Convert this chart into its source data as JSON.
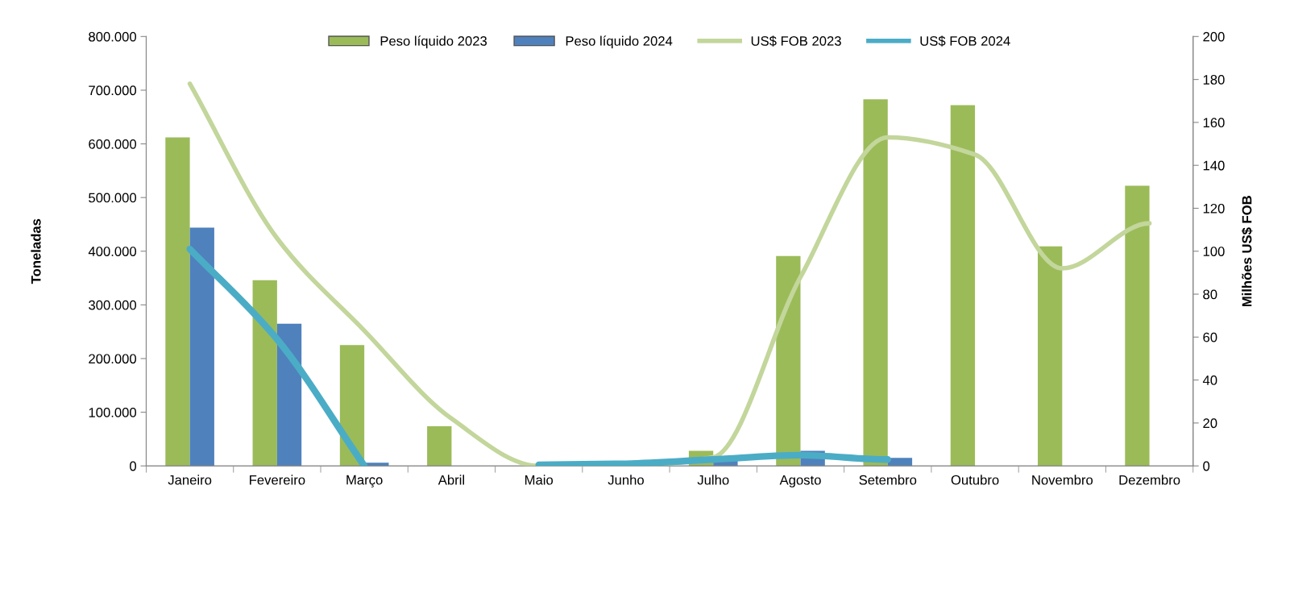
{
  "chart_data": {
    "type": "bar",
    "ylabel": "Toneladas",
    "y2label": "Milhões US$ FOB",
    "categories": [
      "Janeiro",
      "Fevereiro",
      "Março",
      "Abril",
      "Maio",
      "Junho",
      "Julho",
      "Agosto",
      "Setembro",
      "Outubro",
      "Novembro",
      "Dezembro"
    ],
    "series": [
      {
        "name": "Peso líquido 2023",
        "type": "bar",
        "color": "#9bbb59",
        "values": [
          612000,
          346000,
          225000,
          74000,
          0,
          0,
          28000,
          391000,
          683000,
          672000,
          409000,
          522000
        ]
      },
      {
        "name": "Peso líquido 2024",
        "type": "bar",
        "color": "#4f81bd",
        "values": [
          444000,
          265000,
          6000,
          null,
          0,
          0,
          13000,
          28000,
          15000,
          null,
          null,
          null
        ]
      },
      {
        "name": "US$ FOB 2023",
        "type": "line",
        "axis": "y2",
        "color": "#c3d69b",
        "values": [
          178,
          106,
          63,
          22,
          0,
          0,
          4,
          88,
          153,
          145,
          92,
          113
        ]
      },
      {
        "name": "US$ FOB 2024",
        "type": "line",
        "axis": "y2",
        "color": "#4bacc6",
        "values": [
          101,
          59,
          0,
          null,
          0.5,
          1,
          3,
          5,
          3,
          null,
          null,
          null
        ]
      }
    ],
    "ylim": [
      0,
      800000
    ],
    "yticks": [
      0,
      {
        "value": 100000,
        "label": "100.000"
      },
      {
        "value": 200000,
        "label": "200.000"
      },
      {
        "value": 300000,
        "label": "300.000"
      },
      {
        "value": 400000,
        "label": "400.000"
      },
      {
        "value": 500000,
        "label": "500.000"
      },
      {
        "value": 600000,
        "label": "600.000"
      },
      {
        "value": 700000,
        "label": "700.000"
      },
      {
        "value": 800000,
        "label": "800.000"
      }
    ],
    "y2lim": [
      0,
      200
    ],
    "y2ticks": [
      0,
      20,
      40,
      60,
      80,
      100,
      120,
      140,
      160,
      180,
      200
    ],
    "grid": false,
    "legend": "top"
  }
}
